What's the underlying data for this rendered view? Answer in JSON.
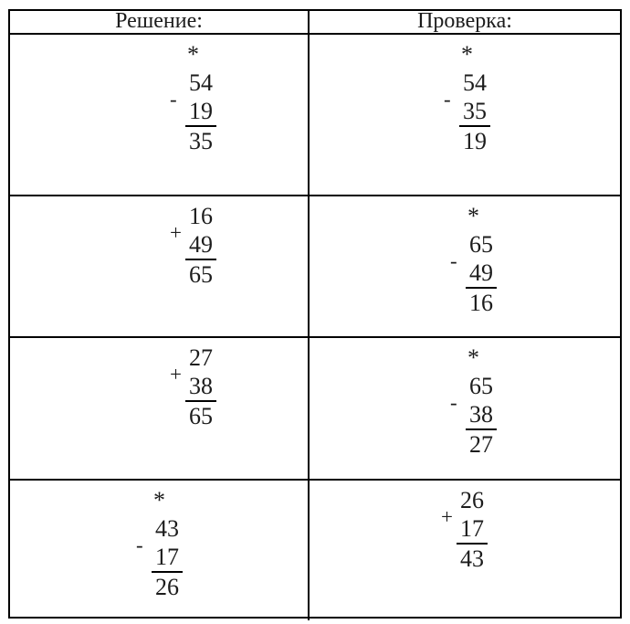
{
  "table": {
    "headers": [
      "Решение:",
      "Проверка:"
    ],
    "rows": [
      {
        "left": {
          "star": "*",
          "op1": "54",
          "operator": "-",
          "op2": "19",
          "result": "35"
        },
        "right": {
          "star": "*",
          "op1": "54",
          "operator": "-",
          "op2": "35",
          "result": "19"
        }
      },
      {
        "left": {
          "star": "",
          "op1": "16",
          "operator": "+",
          "op2": "49",
          "result": "65"
        },
        "right": {
          "star": "*",
          "op1": "65",
          "operator": "-",
          "op2": "49",
          "result": "16"
        }
      },
      {
        "left": {
          "star": "",
          "op1": "27",
          "operator": "+",
          "op2": "38",
          "result": "65"
        },
        "right": {
          "star": "*",
          "op1": "65",
          "operator": "-",
          "op2": "38",
          "result": "27"
        }
      },
      {
        "left": {
          "star": "*",
          "op1": "43",
          "operator": "-",
          "op2": "17",
          "result": "26"
        },
        "right": {
          "star": "",
          "op1": "26",
          "operator": "+",
          "op2": "17",
          "result": "43"
        }
      }
    ]
  }
}
